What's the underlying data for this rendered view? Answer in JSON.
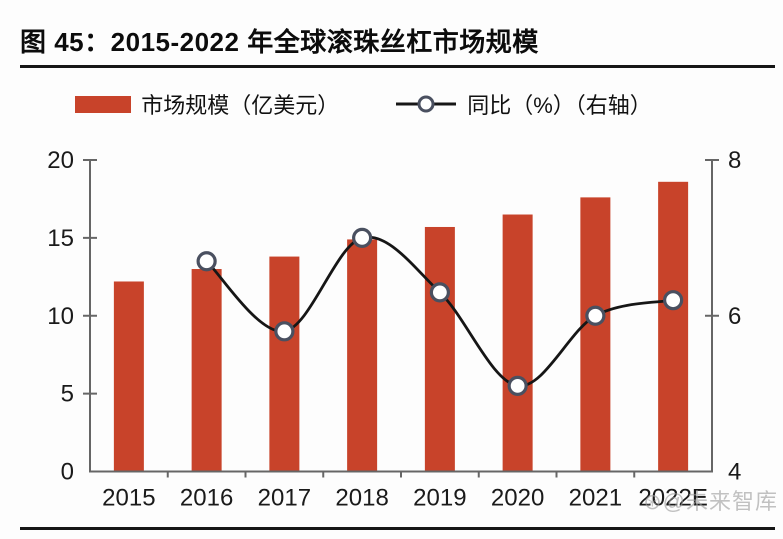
{
  "figure": {
    "title": "图 45：2015-2022 年全球滚珠丝杠市场规模",
    "watermark": "⊛@未来智库"
  },
  "legend": {
    "bar_label": "市场规模（亿美元）",
    "line_label": "同比（%）（右轴）"
  },
  "colors": {
    "bar": "#C8432A",
    "line": "#161616",
    "marker_stroke": "#4A5060",
    "marker_fill": "#FFFFFF",
    "axis": "#666666",
    "text": "#1A1A1A",
    "watermark": "#9D9D9D"
  },
  "chart_data": {
    "type": "bar",
    "title": "2015-2022 年全球滚珠丝杠市场规模",
    "categories": [
      "2015",
      "2016",
      "2017",
      "2018",
      "2019",
      "2020",
      "2021",
      "2022E"
    ],
    "series": [
      {
        "name": "市场规模（亿美元）",
        "type": "bar",
        "axis": "left",
        "values": [
          12.2,
          13.0,
          13.8,
          14.9,
          15.7,
          16.5,
          17.6,
          18.6
        ]
      },
      {
        "name": "同比（%）",
        "type": "line",
        "axis": "right",
        "values": [
          null,
          6.7,
          5.8,
          7.0,
          6.3,
          5.1,
          6.0,
          6.2
        ]
      }
    ],
    "left_axis": {
      "min": 0,
      "max": 20,
      "ticks": [
        0,
        5,
        10,
        15,
        20
      ]
    },
    "right_axis": {
      "min": 4,
      "max": 8,
      "ticks": [
        4,
        6,
        8
      ]
    },
    "grid": false,
    "legend_position": "top"
  }
}
